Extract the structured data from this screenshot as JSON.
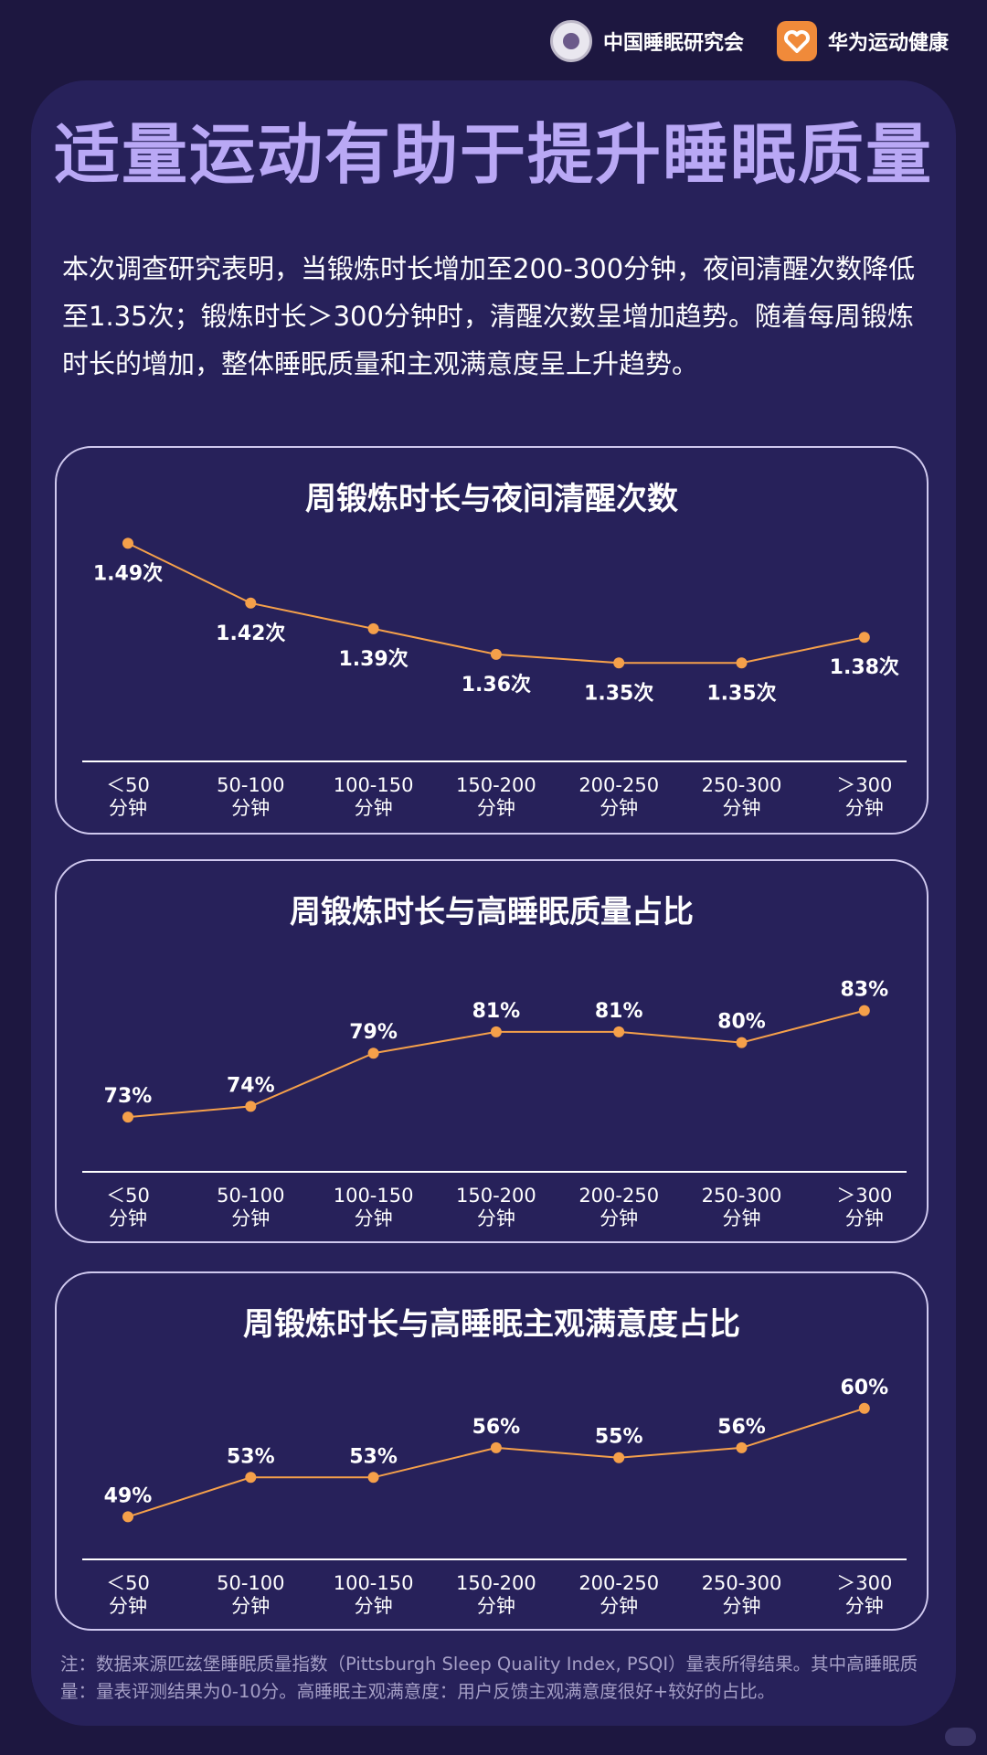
{
  "header": {
    "org_name": "中国睡眠研究会",
    "brand_name": "华为运动健康"
  },
  "title": "适量运动有助于提升睡眠质量",
  "intro": "本次调查研究表明，当锻炼时长增加至200-300分钟，夜间清醒次数降低至1.35次；锻炼时长＞300分钟时，清醒次数呈增加趋势。随着每周锻炼时长的增加，整体睡眠质量和主观满意度呈上升趋势。",
  "footnote": "注：数据来源匹兹堡睡眠质量指数（Pittsburgh Sleep Quality Index, PSQI）量表所得结果。其中高睡眠质量：量表评测结果为0-10分。高睡眠主观满意度：用户反馈主观满意度很好+较好的占比。",
  "colors": {
    "background": "#1d1740",
    "card": "#27215a",
    "title": "#b9a8f5",
    "line": "#f5a04a",
    "axis": "#ffffff"
  },
  "chart_data": [
    {
      "type": "line",
      "title": "周锻炼时长与夜间清醒次数",
      "categories": [
        [
          "＜50",
          "分钟"
        ],
        [
          "50-100",
          "分钟"
        ],
        [
          "100-150",
          "分钟"
        ],
        [
          "150-200",
          "分钟"
        ],
        [
          "200-250",
          "分钟"
        ],
        [
          "250-300",
          "分钟"
        ],
        [
          "＞300",
          "分钟"
        ]
      ],
      "values": [
        1.49,
        1.42,
        1.39,
        1.36,
        1.35,
        1.35,
        1.38
      ],
      "labels": [
        "1.49次",
        "1.42次",
        "1.39次",
        "1.36次",
        "1.35次",
        "1.35次",
        "1.38次"
      ],
      "label_position": "below",
      "ylim": [
        1.3,
        1.5
      ]
    },
    {
      "type": "line",
      "title": "周锻炼时长与高睡眠质量占比",
      "categories": [
        [
          "＜50",
          "分钟"
        ],
        [
          "50-100",
          "分钟"
        ],
        [
          "100-150",
          "分钟"
        ],
        [
          "150-200",
          "分钟"
        ],
        [
          "200-250",
          "分钟"
        ],
        [
          "250-300",
          "分钟"
        ],
        [
          "＞300",
          "分钟"
        ]
      ],
      "values": [
        73,
        74,
        79,
        81,
        81,
        80,
        83
      ],
      "labels": [
        "73%",
        "74%",
        "79%",
        "81%",
        "81%",
        "80%",
        "83%"
      ],
      "label_position": "above",
      "ylim": [
        70,
        84
      ]
    },
    {
      "type": "line",
      "title": "周锻炼时长与高睡眠主观满意度占比",
      "categories": [
        [
          "＜50",
          "分钟"
        ],
        [
          "50-100",
          "分钟"
        ],
        [
          "100-150",
          "分钟"
        ],
        [
          "150-200",
          "分钟"
        ],
        [
          "200-250",
          "分钟"
        ],
        [
          "250-300",
          "分钟"
        ],
        [
          "＞300",
          "分钟"
        ]
      ],
      "values": [
        49,
        53,
        53,
        56,
        55,
        56,
        60
      ],
      "labels": [
        "49%",
        "53%",
        "53%",
        "56%",
        "55%",
        "56%",
        "60%"
      ],
      "label_position": "above",
      "ylim": [
        47,
        61
      ]
    }
  ]
}
